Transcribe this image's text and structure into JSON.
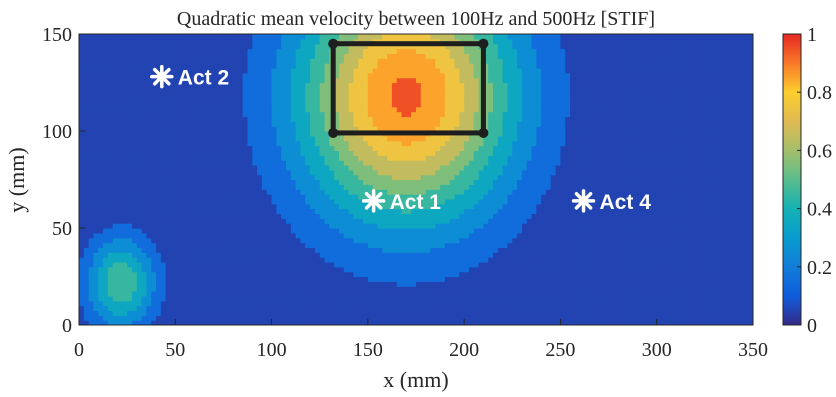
{
  "chart_data": {
    "type": "contour",
    "title": "Quadratic mean velocity between 100Hz and 500Hz [STIF]",
    "xlabel": "x (mm)",
    "ylabel": "y (mm)",
    "xlim": [
      0,
      350
    ],
    "ylim": [
      0,
      150
    ],
    "x_ticks": [
      "0",
      "50",
      "100",
      "150",
      "200",
      "250",
      "300",
      "350"
    ],
    "y_ticks": [
      "0",
      "50",
      "100",
      "150"
    ],
    "colorbar": {
      "range": [
        0,
        1
      ],
      "ticks": [
        "0",
        "0.2",
        "0.4",
        "0.6",
        "0.8",
        "1"
      ],
      "colormap": "parula"
    },
    "contour_levels": [
      0,
      0.1,
      0.2,
      0.3,
      0.4,
      0.5,
      0.6,
      0.7,
      0.8,
      0.9,
      1.0
    ],
    "field_peaks": [
      {
        "x": 170,
        "y": 118,
        "value": 0.92,
        "sx": 40,
        "sy": 46
      },
      {
        "x": 22,
        "y": 22,
        "value": 0.48,
        "sx": 13,
        "sy": 17
      }
    ],
    "actuators": [
      {
        "label": "Act 2",
        "x": 43,
        "y": 128
      },
      {
        "label": "Act 1",
        "x": 153,
        "y": 64
      },
      {
        "label": "Act 4",
        "x": 262,
        "y": 64
      }
    ],
    "highlight_box": {
      "x": [
        132,
        210
      ],
      "y": [
        99,
        145
      ]
    },
    "colors": {
      "box": "#1e1e1e",
      "marker": "#ffffff"
    }
  }
}
